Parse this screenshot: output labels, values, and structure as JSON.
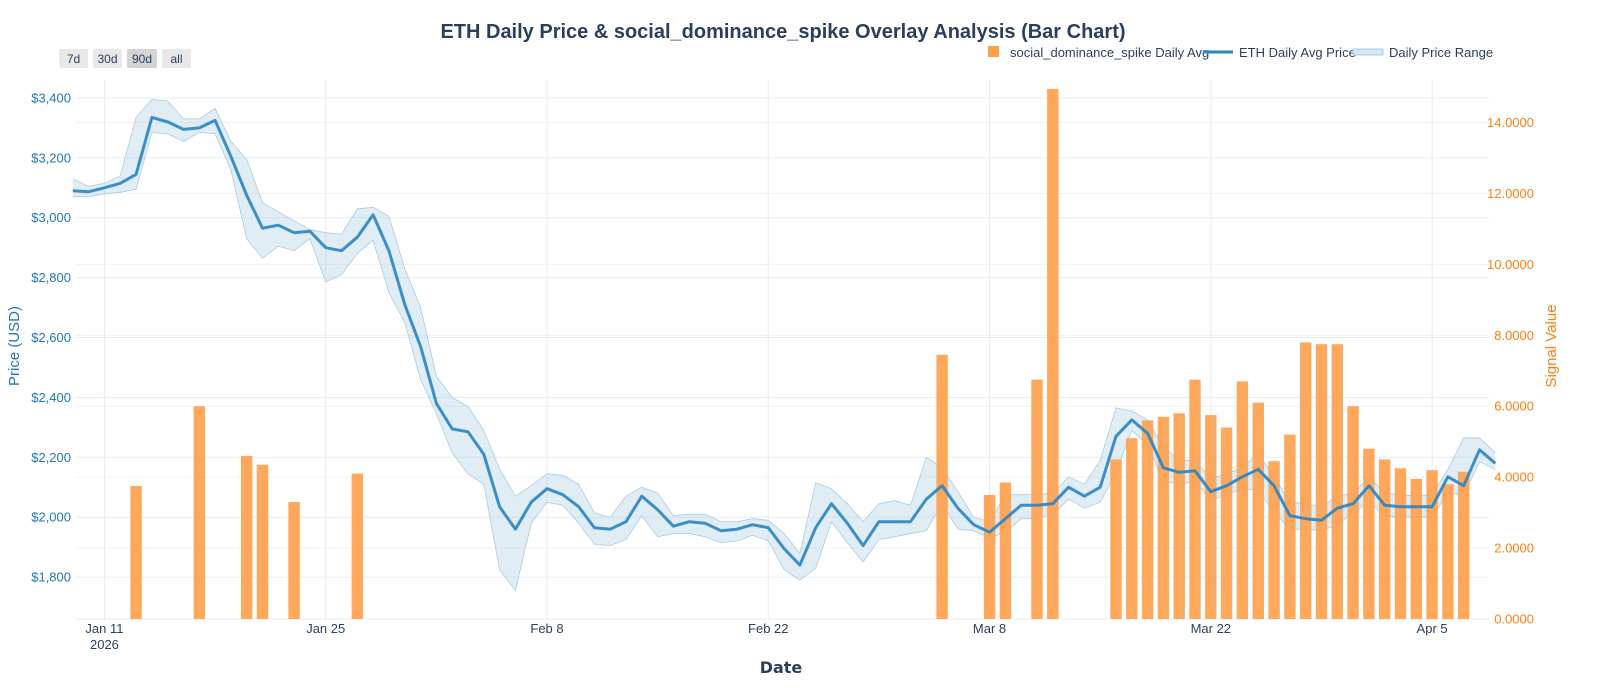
{
  "range_selector": {
    "buttons": [
      "7d",
      "30d",
      "90d",
      "all"
    ],
    "active": "90d"
  },
  "chart_data": {
    "type": "line+bar",
    "title": "ETH Daily Price & social_dominance_spike Overlay Analysis (Bar Chart)",
    "xlabel": "Date",
    "ylabel_left": "Price (USD)",
    "ylabel_right": "Signal Value",
    "x_start": "2026-01-09",
    "x_ticks": [
      {
        "day": 2,
        "label": "Jan 11",
        "sub": "2026"
      },
      {
        "day": 16,
        "label": "Jan 25",
        "sub": ""
      },
      {
        "day": 30,
        "label": "Feb 8",
        "sub": ""
      },
      {
        "day": 44,
        "label": "Feb 22",
        "sub": ""
      },
      {
        "day": 58,
        "label": "Mar 8",
        "sub": ""
      },
      {
        "day": 72,
        "label": "Mar 22",
        "sub": ""
      },
      {
        "day": 86,
        "label": "Apr 5",
        "sub": ""
      }
    ],
    "xlim": [
      0.2,
      89.6
    ],
    "ylim_left": [
      1660,
      3460
    ],
    "y_ticks_left": [
      {
        "value": 1800,
        "label": "$1,800"
      },
      {
        "value": 2000,
        "label": "$2,000"
      },
      {
        "value": 2200,
        "label": "$2,200"
      },
      {
        "value": 2400,
        "label": "$2,400"
      },
      {
        "value": 2600,
        "label": "$2,600"
      },
      {
        "value": 2800,
        "label": "$2,800"
      },
      {
        "value": 3000,
        "label": "$3,000"
      },
      {
        "value": 3200,
        "label": "$3,200"
      },
      {
        "value": 3400,
        "label": "$3,400"
      }
    ],
    "ylim_right": [
      0,
      15.2
    ],
    "y_ticks_right": [
      {
        "value": 0,
        "label": "0.0000"
      },
      {
        "value": 2,
        "label": "2.0000"
      },
      {
        "value": 4,
        "label": "4.0000"
      },
      {
        "value": 6,
        "label": "6.0000"
      },
      {
        "value": 8,
        "label": "8.0000"
      },
      {
        "value": 10,
        "label": "10.0000"
      },
      {
        "value": 12,
        "label": "12.0000"
      },
      {
        "value": 14,
        "label": "14.0000"
      }
    ],
    "series": [
      {
        "name": "social_dominance_spike Daily Avg",
        "kind": "bar",
        "color": "#ff9f4a",
        "points": [
          {
            "day": 4,
            "value": 3.75
          },
          {
            "day": 8,
            "value": 6.0
          },
          {
            "day": 11,
            "value": 4.6
          },
          {
            "day": 12,
            "value": 4.35
          },
          {
            "day": 14,
            "value": 3.3
          },
          {
            "day": 18,
            "value": 4.1
          },
          {
            "day": 55,
            "value": 7.45
          },
          {
            "day": 58,
            "value": 3.5
          },
          {
            "day": 59,
            "value": 3.85
          },
          {
            "day": 61,
            "value": 6.75
          },
          {
            "day": 62,
            "value": 14.95
          },
          {
            "day": 66,
            "value": 4.5
          },
          {
            "day": 67,
            "value": 5.1
          },
          {
            "day": 68,
            "value": 5.6
          },
          {
            "day": 69,
            "value": 5.7
          },
          {
            "day": 70,
            "value": 5.8
          },
          {
            "day": 71,
            "value": 6.75
          },
          {
            "day": 72,
            "value": 5.75
          },
          {
            "day": 73,
            "value": 5.4
          },
          {
            "day": 74,
            "value": 6.7
          },
          {
            "day": 75,
            "value": 6.1
          },
          {
            "day": 76,
            "value": 4.45
          },
          {
            "day": 77,
            "value": 5.2
          },
          {
            "day": 78,
            "value": 7.8
          },
          {
            "day": 79,
            "value": 7.75
          },
          {
            "day": 80,
            "value": 7.75
          },
          {
            "day": 81,
            "value": 6.0
          },
          {
            "day": 82,
            "value": 4.8
          },
          {
            "day": 83,
            "value": 4.5
          },
          {
            "day": 84,
            "value": 4.25
          },
          {
            "day": 85,
            "value": 3.95
          },
          {
            "day": 86,
            "value": 4.2
          },
          {
            "day": 87,
            "value": 3.8
          },
          {
            "day": 88,
            "value": 4.15
          }
        ]
      },
      {
        "name": "ETH Daily Avg Price",
        "kind": "line",
        "color": "#2e86c1",
        "values": [
          3090,
          3087,
          3100,
          3115,
          3145,
          3335,
          3320,
          3295,
          3300,
          3325,
          3205,
          3075,
          2965,
          2975,
          2950,
          2955,
          2900,
          2890,
          2935,
          3010,
          2890,
          2710,
          2570,
          2380,
          2295,
          2285,
          2210,
          2035,
          1960,
          2050,
          2095,
          2075,
          2035,
          1965,
          1960,
          1985,
          2070,
          2025,
          1970,
          1985,
          1980,
          1955,
          1960,
          1975,
          1965,
          1895,
          1840,
          1965,
          2045,
          1980,
          1905,
          1985,
          1985,
          1985,
          2060,
          2105,
          2030,
          1975,
          1950,
          1995,
          2040,
          2040,
          2045,
          2100,
          2070,
          2100,
          2270,
          2325,
          2280,
          2165,
          2150,
          2155,
          2085,
          2105,
          2135,
          2160,
          2105,
          2005,
          1995,
          1990,
          2030,
          2045,
          2105,
          2040,
          2035,
          2035,
          2035,
          2135,
          2105,
          2225,
          2180
        ],
        "low": [
          3070,
          3070,
          3080,
          3085,
          3095,
          3285,
          3280,
          3255,
          3285,
          3280,
          3160,
          2930,
          2865,
          2905,
          2890,
          2930,
          2785,
          2810,
          2880,
          2925,
          2750,
          2650,
          2460,
          2345,
          2215,
          2145,
          2110,
          1825,
          1755,
          1980,
          2050,
          2040,
          1980,
          1910,
          1905,
          1925,
          2005,
          1935,
          1945,
          1945,
          1935,
          1915,
          1920,
          1940,
          1920,
          1825,
          1790,
          1830,
          1985,
          1915,
          1850,
          1925,
          1935,
          1945,
          1955,
          2045,
          1960,
          1955,
          1930,
          1950,
          1995,
          1995,
          2010,
          2060,
          2030,
          2050,
          2150,
          2290,
          2240,
          2120,
          2110,
          2120,
          2055,
          2075,
          2095,
          2090,
          2015,
          1960,
          1960,
          1955,
          1975,
          2015,
          2050,
          2005,
          2000,
          2000,
          2000,
          2080,
          2075,
          2185,
          2160
        ],
        "high": [
          3130,
          3105,
          3115,
          3140,
          3335,
          3395,
          3390,
          3330,
          3330,
          3365,
          3255,
          3195,
          3050,
          3020,
          2990,
          2960,
          2950,
          2945,
          3030,
          3035,
          3005,
          2830,
          2700,
          2470,
          2400,
          2370,
          2290,
          2160,
          2070,
          2105,
          2145,
          2140,
          2110,
          2015,
          2000,
          2070,
          2100,
          2080,
          2005,
          2010,
          2010,
          1985,
          1985,
          1995,
          1990,
          1945,
          1880,
          2115,
          2095,
          2045,
          1985,
          2045,
          2055,
          2040,
          2200,
          2165,
          2085,
          2000,
          1985,
          2075,
          2075,
          2075,
          2080,
          2135,
          2110,
          2190,
          2365,
          2355,
          2325,
          2235,
          2190,
          2190,
          2130,
          2145,
          2165,
          2215,
          2135,
          2050,
          2045,
          2035,
          2070,
          2080,
          2135,
          2080,
          2075,
          2070,
          2075,
          2160,
          2265,
          2265,
          2215
        ]
      }
    ],
    "legend": [
      {
        "label": "social_dominance_spike Daily Avg",
        "type": "square",
        "color": "#ff9f4a"
      },
      {
        "label": "ETH Daily Avg Price",
        "type": "line",
        "color": "#2e86c1"
      },
      {
        "label": "Daily Price Range",
        "type": "fill",
        "color": "#a9cce3"
      }
    ],
    "legend_position": "top-right",
    "grid": true
  }
}
